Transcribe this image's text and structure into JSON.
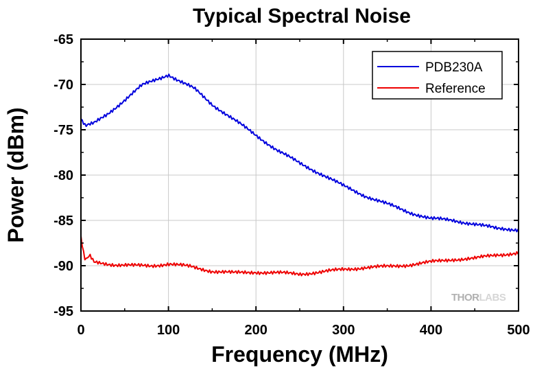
{
  "chart_data": {
    "type": "line",
    "title": "Typical Spectral Noise",
    "xlabel": "Frequency (MHz)",
    "ylabel": "Power (dBm)",
    "xlim": [
      0,
      500
    ],
    "ylim": [
      -95,
      -65
    ],
    "xticks": [
      "0",
      "100",
      "200",
      "300",
      "400",
      "500"
    ],
    "yticks": [
      "-65",
      "-70",
      "-75",
      "-80",
      "-85",
      "-90",
      "-95"
    ],
    "grid": true,
    "legend_position": "top-right",
    "series": [
      {
        "name": "PDB230A",
        "color": "#0000dd",
        "x": [
          0,
          5,
          15,
          30,
          50,
          70,
          90,
          100,
          110,
          130,
          150,
          175,
          200,
          225,
          250,
          275,
          300,
          325,
          350,
          375,
          400,
          425,
          450,
          475,
          500
        ],
        "y": [
          -73.8,
          -74.6,
          -74.3,
          -73.3,
          -71.7,
          -70.1,
          -69.3,
          -68.9,
          -69.5,
          -70.5,
          -72.2,
          -73.9,
          -75.6,
          -77.3,
          -78.7,
          -79.9,
          -81.2,
          -82.3,
          -83.2,
          -84.1,
          -84.8,
          -85.0,
          -85.4,
          -85.9,
          -86.0
        ]
      },
      {
        "name": "Reference",
        "color": "#ee0000",
        "x": [
          0,
          2,
          5,
          10,
          15,
          25,
          40,
          60,
          80,
          100,
          125,
          150,
          175,
          200,
          225,
          250,
          275,
          300,
          325,
          350,
          375,
          400,
          425,
          450,
          475,
          500
        ],
        "y": [
          -86.8,
          -88.2,
          -89.5,
          -88.9,
          -89.6,
          -89.7,
          -89.9,
          -90.0,
          -90.0,
          -89.8,
          -90.1,
          -90.6,
          -90.8,
          -90.7,
          -90.8,
          -90.9,
          -90.7,
          -90.4,
          -90.2,
          -90.1,
          -89.9,
          -89.6,
          -89.3,
          -89.2,
          -88.8,
          -88.6
        ]
      }
    ]
  },
  "watermark": {
    "part1": "THOR",
    "part2": "LABS"
  }
}
